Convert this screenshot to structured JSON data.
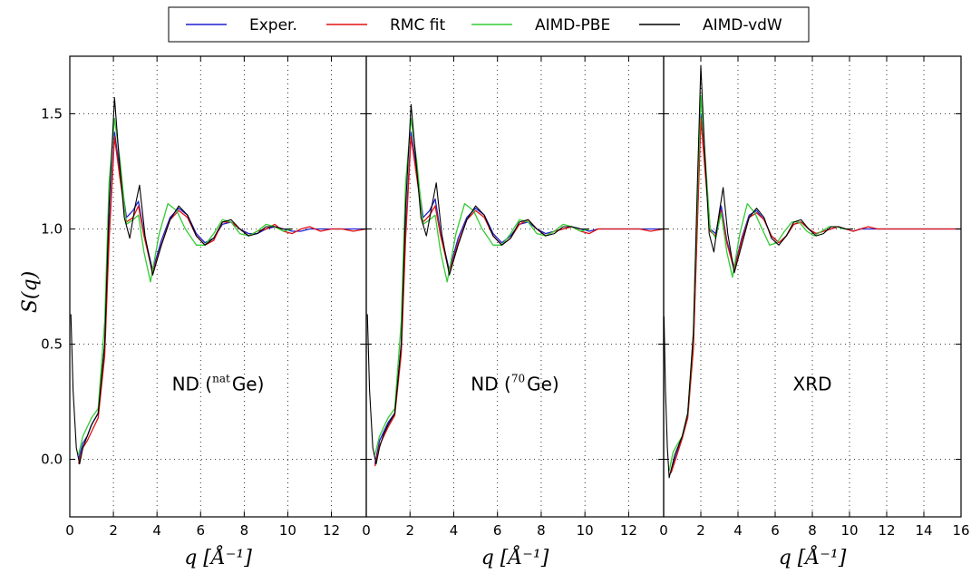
{
  "chart_data": {
    "type": "line",
    "ylabel": "S(q)",
    "ylim": [
      -0.25,
      1.75
    ],
    "yticks": [
      "0.0",
      "0.5",
      "1.0",
      "1.5"
    ],
    "ytick_values": [
      0.0,
      0.5,
      1.0,
      1.5
    ],
    "grid": true,
    "legend_position": "top, outside",
    "legend": [
      {
        "name": "Exper.",
        "color": "#1f1fd0"
      },
      {
        "name": "RMC fit",
        "color": "#e01010"
      },
      {
        "name": "AIMD-PBE",
        "color": "#33cc33"
      },
      {
        "name": "AIMD-vdW",
        "color": "#000000"
      }
    ],
    "panels": [
      {
        "label_pre": "ND (",
        "label_sup": "nat",
        "label_post": "Ge)",
        "xlabel": "q [Å⁻¹]",
        "xlim": [
          0,
          13.6
        ],
        "xticks": [
          0,
          2,
          4,
          6,
          8,
          10,
          12
        ],
        "series": [
          {
            "name": "Exper.",
            "x": [
              0.4,
              0.6,
              0.8,
              1.0,
              1.3,
              1.6,
              1.8,
              2.05,
              2.3,
              2.6,
              2.9,
              3.15,
              3.4,
              3.8,
              4.2,
              4.6,
              5.0,
              5.4,
              5.8,
              6.2,
              6.6,
              7.0,
              7.4,
              7.8,
              8.2,
              8.6,
              9.0,
              9.4,
              9.8,
              10.2,
              10.6,
              11.0,
              11.5,
              12.0,
              12.5,
              13.0,
              13.6
            ],
            "y": [
              0.0,
              0.07,
              0.1,
              0.15,
              0.2,
              0.5,
              1.0,
              1.42,
              1.25,
              1.05,
              1.08,
              1.12,
              0.98,
              0.82,
              0.95,
              1.05,
              1.09,
              1.06,
              0.98,
              0.94,
              0.96,
              1.02,
              1.03,
              1.0,
              0.98,
              0.98,
              1.0,
              1.01,
              1.0,
              0.99,
              0.99,
              1.0,
              1.0,
              1.0,
              1.0,
              1.0,
              1.0
            ]
          },
          {
            "name": "RMC fit",
            "x": [
              0.4,
              0.6,
              0.8,
              1.0,
              1.3,
              1.6,
              1.8,
              2.05,
              2.3,
              2.6,
              2.9,
              3.15,
              3.4,
              3.8,
              4.2,
              4.6,
              5.0,
              5.4,
              5.8,
              6.2,
              6.6,
              7.0,
              7.4,
              7.8,
              8.2,
              8.6,
              9.0,
              9.4,
              9.8,
              10.2,
              10.6,
              11.0,
              11.5,
              12.0,
              12.5,
              13.0,
              13.6
            ],
            "y": [
              -0.02,
              0.05,
              0.08,
              0.12,
              0.18,
              0.45,
              0.95,
              1.4,
              1.22,
              1.03,
              1.05,
              1.1,
              0.97,
              0.81,
              0.93,
              1.04,
              1.08,
              1.05,
              0.97,
              0.93,
              0.95,
              1.03,
              1.03,
              1.0,
              0.97,
              0.99,
              1.0,
              1.02,
              0.99,
              0.98,
              1.0,
              1.01,
              0.99,
              1.0,
              1.0,
              0.99,
              1.0
            ]
          },
          {
            "name": "AIMD-PBE",
            "x": [
              0.4,
              0.6,
              0.8,
              1.0,
              1.3,
              1.6,
              1.8,
              2.05,
              2.3,
              2.6,
              2.9,
              3.15,
              3.4,
              3.7,
              4.1,
              4.5,
              4.9,
              5.3,
              5.8,
              6.2,
              6.6,
              7.0,
              7.4,
              7.8,
              8.2,
              8.6,
              9.0,
              9.4,
              9.8,
              10.2
            ],
            "y": [
              0.02,
              0.1,
              0.14,
              0.18,
              0.22,
              0.6,
              1.2,
              1.48,
              1.3,
              1.02,
              1.04,
              1.06,
              0.9,
              0.77,
              0.98,
              1.11,
              1.08,
              1.0,
              0.93,
              0.93,
              0.98,
              1.04,
              1.03,
              0.98,
              0.97,
              0.99,
              1.02,
              1.01,
              0.99,
              1.0
            ]
          },
          {
            "name": "AIMD-vdW",
            "x": [
              0.05,
              0.15,
              0.3,
              0.45,
              0.6,
              0.8,
              1.0,
              1.3,
              1.6,
              1.8,
              2.05,
              2.25,
              2.5,
              2.75,
              3.0,
              3.2,
              3.45,
              3.8,
              4.2,
              4.6,
              5.0,
              5.4,
              5.8,
              6.2,
              6.6,
              7.0,
              7.4,
              7.8,
              8.2,
              8.6,
              9.0,
              9.4,
              9.8,
              10.2
            ],
            "y": [
              0.63,
              0.3,
              0.05,
              -0.02,
              0.05,
              0.1,
              0.15,
              0.2,
              0.5,
              1.1,
              1.57,
              1.32,
              1.05,
              0.96,
              1.1,
              1.19,
              0.97,
              0.8,
              0.93,
              1.04,
              1.1,
              1.06,
              0.97,
              0.93,
              0.96,
              1.03,
              1.04,
              1.0,
              0.97,
              0.98,
              1.01,
              1.01,
              1.0,
              1.0
            ]
          }
        ]
      },
      {
        "label_pre": "ND (",
        "label_sup": "70",
        "label_post": "Ge)",
        "xlabel": "q [Å⁻¹]",
        "xlim": [
          0,
          13.6
        ],
        "xticks": [
          0,
          2,
          4,
          6,
          8,
          10,
          12
        ],
        "series": [
          {
            "name": "Exper.",
            "x": [
              0.4,
              0.6,
              0.8,
              1.0,
              1.3,
              1.6,
              1.8,
              2.05,
              2.3,
              2.6,
              2.9,
              3.15,
              3.4,
              3.8,
              4.2,
              4.6,
              5.0,
              5.4,
              5.8,
              6.2,
              6.6,
              7.0,
              7.4,
              7.8,
              8.2,
              8.6,
              9.0,
              9.4,
              9.8,
              10.2,
              10.6,
              11.0,
              11.5,
              12.0,
              12.5,
              13.0,
              13.6
            ],
            "y": [
              -0.02,
              0.08,
              0.12,
              0.16,
              0.2,
              0.5,
              1.0,
              1.42,
              1.26,
              1.05,
              1.08,
              1.13,
              0.98,
              0.82,
              0.96,
              1.05,
              1.09,
              1.06,
              0.98,
              0.94,
              0.97,
              1.02,
              1.03,
              1.0,
              0.98,
              0.99,
              1.0,
              1.01,
              1.0,
              0.99,
              1.0,
              1.0,
              1.0,
              1.0,
              1.0,
              1.0,
              1.0
            ]
          },
          {
            "name": "RMC fit",
            "x": [
              0.4,
              0.6,
              0.8,
              1.0,
              1.3,
              1.6,
              1.8,
              2.05,
              2.3,
              2.6,
              2.9,
              3.15,
              3.4,
              3.8,
              4.2,
              4.6,
              5.0,
              5.4,
              5.8,
              6.2,
              6.6,
              7.0,
              7.4,
              7.8,
              8.2,
              8.6,
              9.0,
              9.4,
              9.8,
              10.2,
              10.6,
              11.0,
              11.5,
              12.0,
              12.5,
              13.0,
              13.6
            ],
            "y": [
              -0.03,
              0.06,
              0.1,
              0.14,
              0.19,
              0.46,
              0.96,
              1.4,
              1.23,
              1.03,
              1.06,
              1.1,
              0.97,
              0.81,
              0.94,
              1.04,
              1.08,
              1.05,
              0.97,
              0.93,
              0.96,
              1.02,
              1.04,
              1.0,
              0.97,
              0.99,
              1.0,
              1.01,
              0.99,
              0.98,
              1.0,
              1.0,
              1.0,
              1.0,
              1.0,
              0.99,
              1.0
            ]
          },
          {
            "name": "AIMD-PBE",
            "x": [
              0.4,
              0.6,
              0.8,
              1.0,
              1.3,
              1.6,
              1.8,
              2.05,
              2.3,
              2.6,
              2.9,
              3.15,
              3.4,
              3.7,
              4.1,
              4.5,
              4.9,
              5.3,
              5.8,
              6.2,
              6.6,
              7.0,
              7.4,
              7.8,
              8.2,
              8.6,
              9.0,
              9.4,
              9.8,
              10.2
            ],
            "y": [
              0.02,
              0.1,
              0.14,
              0.18,
              0.22,
              0.6,
              1.2,
              1.48,
              1.3,
              1.02,
              1.04,
              1.06,
              0.9,
              0.77,
              0.98,
              1.11,
              1.08,
              1.0,
              0.93,
              0.93,
              0.98,
              1.04,
              1.03,
              0.98,
              0.97,
              0.99,
              1.02,
              1.01,
              0.99,
              1.0
            ]
          },
          {
            "name": "AIMD-vdW",
            "x": [
              0.05,
              0.15,
              0.3,
              0.45,
              0.6,
              0.8,
              1.0,
              1.3,
              1.6,
              1.8,
              2.05,
              2.25,
              2.5,
              2.75,
              3.0,
              3.2,
              3.45,
              3.8,
              4.2,
              4.6,
              5.0,
              5.4,
              5.8,
              6.2,
              6.6,
              7.0,
              7.4,
              7.8,
              8.2,
              8.6,
              9.0,
              9.4,
              9.8,
              10.2
            ],
            "y": [
              0.63,
              0.3,
              0.05,
              -0.02,
              0.05,
              0.11,
              0.15,
              0.2,
              0.5,
              1.1,
              1.54,
              1.32,
              1.05,
              0.97,
              1.1,
              1.2,
              0.98,
              0.8,
              0.93,
              1.04,
              1.1,
              1.06,
              0.97,
              0.93,
              0.96,
              1.03,
              1.04,
              1.0,
              0.97,
              0.98,
              1.01,
              1.01,
              1.0,
              1.0
            ]
          }
        ]
      },
      {
        "label_pre": "XRD",
        "label_sup": "",
        "label_post": "",
        "xlabel": "q [Å⁻¹]",
        "xlim": [
          0,
          16
        ],
        "xticks": [
          0,
          2,
          4,
          6,
          8,
          10,
          12,
          14,
          16
        ],
        "series": [
          {
            "name": "Exper.",
            "x": [
              0.4,
              0.6,
              0.8,
              1.0,
              1.3,
              1.6,
              1.8,
              2.0,
              2.2,
              2.5,
              2.8,
              3.1,
              3.4,
              3.8,
              4.2,
              4.6,
              5.0,
              5.4,
              5.8,
              6.2,
              6.6,
              7.0,
              7.4,
              7.8,
              8.2,
              8.6,
              9.0,
              9.4,
              9.8,
              10.2,
              10.6,
              11.0,
              11.5,
              12.0,
              13.0,
              14.0,
              15.0,
              16.0
            ],
            "y": [
              -0.05,
              0.0,
              0.05,
              0.1,
              0.2,
              0.5,
              1.0,
              1.5,
              1.3,
              1.0,
              0.98,
              1.1,
              0.95,
              0.83,
              0.96,
              1.06,
              1.08,
              1.04,
              0.97,
              0.94,
              0.97,
              1.02,
              1.03,
              1.0,
              0.98,
              0.99,
              1.0,
              1.01,
              1.0,
              0.99,
              1.0,
              1.0,
              1.0,
              1.0,
              1.0,
              1.0,
              1.0,
              1.0
            ]
          },
          {
            "name": "RMC fit",
            "x": [
              0.4,
              0.6,
              0.8,
              1.0,
              1.3,
              1.6,
              1.8,
              2.0,
              2.2,
              2.5,
              2.8,
              3.1,
              3.4,
              3.8,
              4.2,
              4.6,
              5.0,
              5.4,
              5.8,
              6.2,
              6.6,
              7.0,
              7.4,
              7.8,
              8.2,
              8.6,
              9.0,
              9.4,
              9.8,
              10.2,
              10.6,
              11.0,
              11.5,
              12.0,
              13.0,
              14.0,
              15.0,
              16.0
            ],
            "y": [
              -0.06,
              -0.01,
              0.04,
              0.09,
              0.18,
              0.48,
              0.98,
              1.48,
              1.28,
              0.99,
              0.97,
              1.08,
              0.94,
              0.82,
              0.95,
              1.05,
              1.07,
              1.04,
              0.97,
              0.94,
              0.97,
              1.02,
              1.03,
              1.0,
              0.98,
              0.99,
              1.0,
              1.01,
              1.0,
              0.99,
              1.0,
              1.01,
              1.0,
              1.0,
              1.0,
              1.0,
              1.0,
              1.0
            ]
          },
          {
            "name": "AIMD-PBE",
            "x": [
              0.3,
              0.5,
              0.7,
              1.0,
              1.3,
              1.6,
              1.8,
              2.0,
              2.2,
              2.5,
              2.8,
              3.1,
              3.4,
              3.7,
              4.1,
              4.5,
              4.9,
              5.3,
              5.7,
              6.1,
              6.5,
              6.9,
              7.3,
              7.7,
              8.1,
              8.5,
              8.9,
              9.3,
              9.7,
              10.1
            ],
            "y": [
              -0.05,
              0.03,
              0.06,
              0.1,
              0.2,
              0.55,
              1.1,
              1.58,
              1.35,
              1.0,
              0.96,
              1.07,
              0.9,
              0.79,
              0.98,
              1.11,
              1.07,
              1.0,
              0.93,
              0.94,
              0.99,
              1.03,
              1.03,
              0.99,
              0.97,
              0.99,
              1.01,
              1.01,
              1.0,
              1.0
            ]
          },
          {
            "name": "AIMD-vdW",
            "x": [
              0.02,
              0.1,
              0.2,
              0.3,
              0.45,
              0.6,
              0.8,
              1.0,
              1.3,
              1.6,
              1.8,
              2.0,
              2.2,
              2.45,
              2.7,
              2.95,
              3.2,
              3.45,
              3.8,
              4.2,
              4.6,
              5.0,
              5.4,
              5.8,
              6.2,
              6.6,
              7.0,
              7.4,
              7.8,
              8.2,
              8.6,
              9.0,
              9.4,
              9.8,
              10.2
            ],
            "y": [
              0.62,
              0.3,
              0.05,
              -0.08,
              -0.03,
              0.02,
              0.06,
              0.1,
              0.2,
              0.55,
              1.15,
              1.71,
              1.35,
              0.98,
              0.9,
              1.05,
              1.18,
              0.98,
              0.81,
              0.93,
              1.05,
              1.09,
              1.05,
              0.96,
              0.93,
              0.97,
              1.03,
              1.04,
              1.0,
              0.97,
              0.98,
              1.01,
              1.01,
              1.0,
              1.0
            ]
          }
        ]
      }
    ]
  }
}
